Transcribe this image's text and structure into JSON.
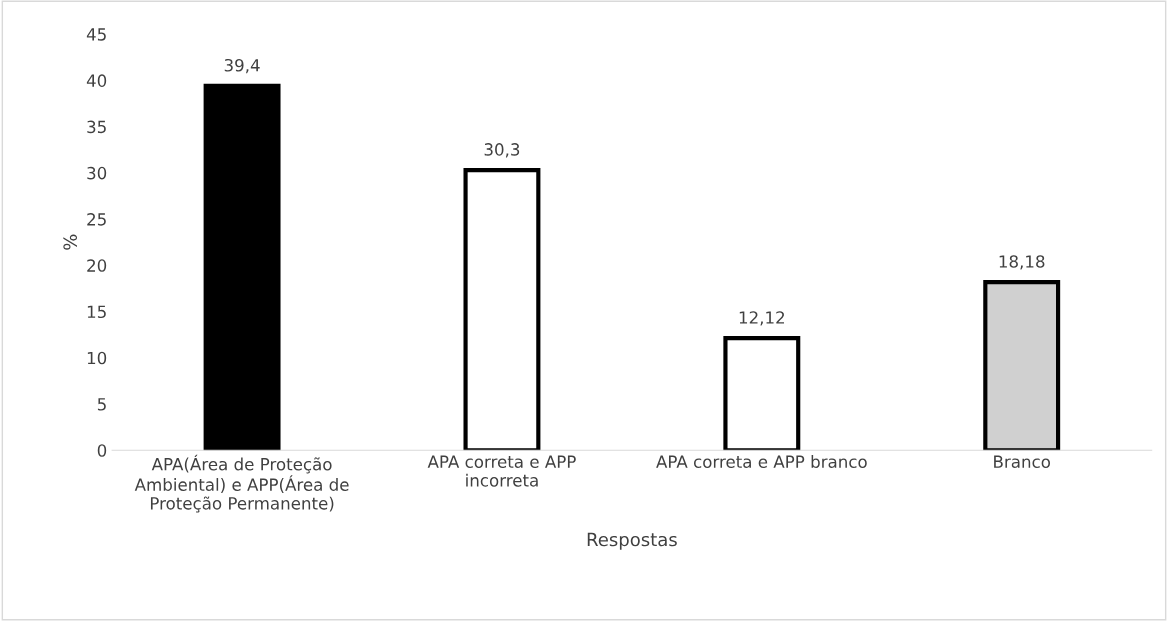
{
  "chart_data": {
    "type": "bar",
    "xlabel": "Respostas",
    "ylabel": "%",
    "categories": [
      "APA(Área de Proteção\nAmbiental) e APP(Área de\nProteção Permanente)",
      "APA correta e APP\nincorreta",
      "APA correta e APP branco",
      "Branco"
    ],
    "values": [
      39.4,
      30.3,
      12.12,
      18.18
    ],
    "value_labels": [
      "39,4",
      "30,3",
      "12,12",
      "18,18"
    ],
    "colors": [
      "#000000",
      "#ffffff",
      "#ffffff",
      "#d0d0d0"
    ],
    "ylim": [
      0,
      45
    ],
    "yticks": [
      0,
      5,
      10,
      15,
      20,
      25,
      30,
      35,
      40,
      45
    ],
    "grid": false,
    "legend": false
  }
}
